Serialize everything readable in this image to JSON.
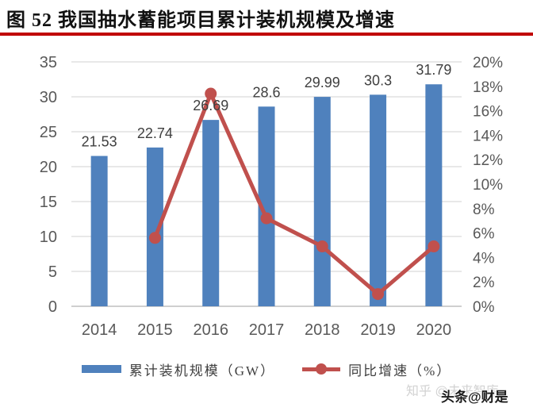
{
  "header": {
    "title": "图 52  我国抽水蓄能项目累计装机规模及增速",
    "underline_color": "#c00000"
  },
  "chart_data": {
    "type": "bar",
    "title": "我国抽水蓄能项目累计装机规模及增速",
    "categories": [
      "2014",
      "2015",
      "2016",
      "2017",
      "2018",
      "2019",
      "2020"
    ],
    "series": [
      {
        "name": "累计装机规模（GW）",
        "type": "bar",
        "axis": "left",
        "color": "#4f81bd",
        "values": [
          21.53,
          22.74,
          26.69,
          28.6,
          29.99,
          30.3,
          31.79
        ],
        "labels": [
          "21.53",
          "22.74",
          "26.69",
          "28.6",
          "29.99",
          "30.3",
          "31.79"
        ]
      },
      {
        "name": "同比增速（%）",
        "type": "line",
        "axis": "right",
        "color": "#c0504d",
        "values": [
          null,
          5.6,
          17.4,
          7.2,
          4.9,
          1.0,
          4.9
        ]
      }
    ],
    "axes": {
      "left": {
        "min": 0,
        "max": 35,
        "step": 5,
        "suffix": ""
      },
      "right": {
        "min": 0,
        "max": 20,
        "step": 2,
        "suffix": "%"
      }
    },
    "grid": true,
    "legend_position": "bottom",
    "gridline_color": "#d9d9d9",
    "baseline_color": "#bfbfbf",
    "axis_text_color": "#595959",
    "value_label_color": "#3f3f3f"
  },
  "legend": {
    "items": [
      {
        "label": "累计装机规模（GW）",
        "marker": "bar-swatch",
        "color": "#4f81bd"
      },
      {
        "label": "同比增速（%）",
        "marker": "line-dot",
        "color": "#c0504d"
      }
    ]
  },
  "watermarks": {
    "zhihu": "知乎 @未来智库",
    "toutiao": "头条@财是"
  }
}
